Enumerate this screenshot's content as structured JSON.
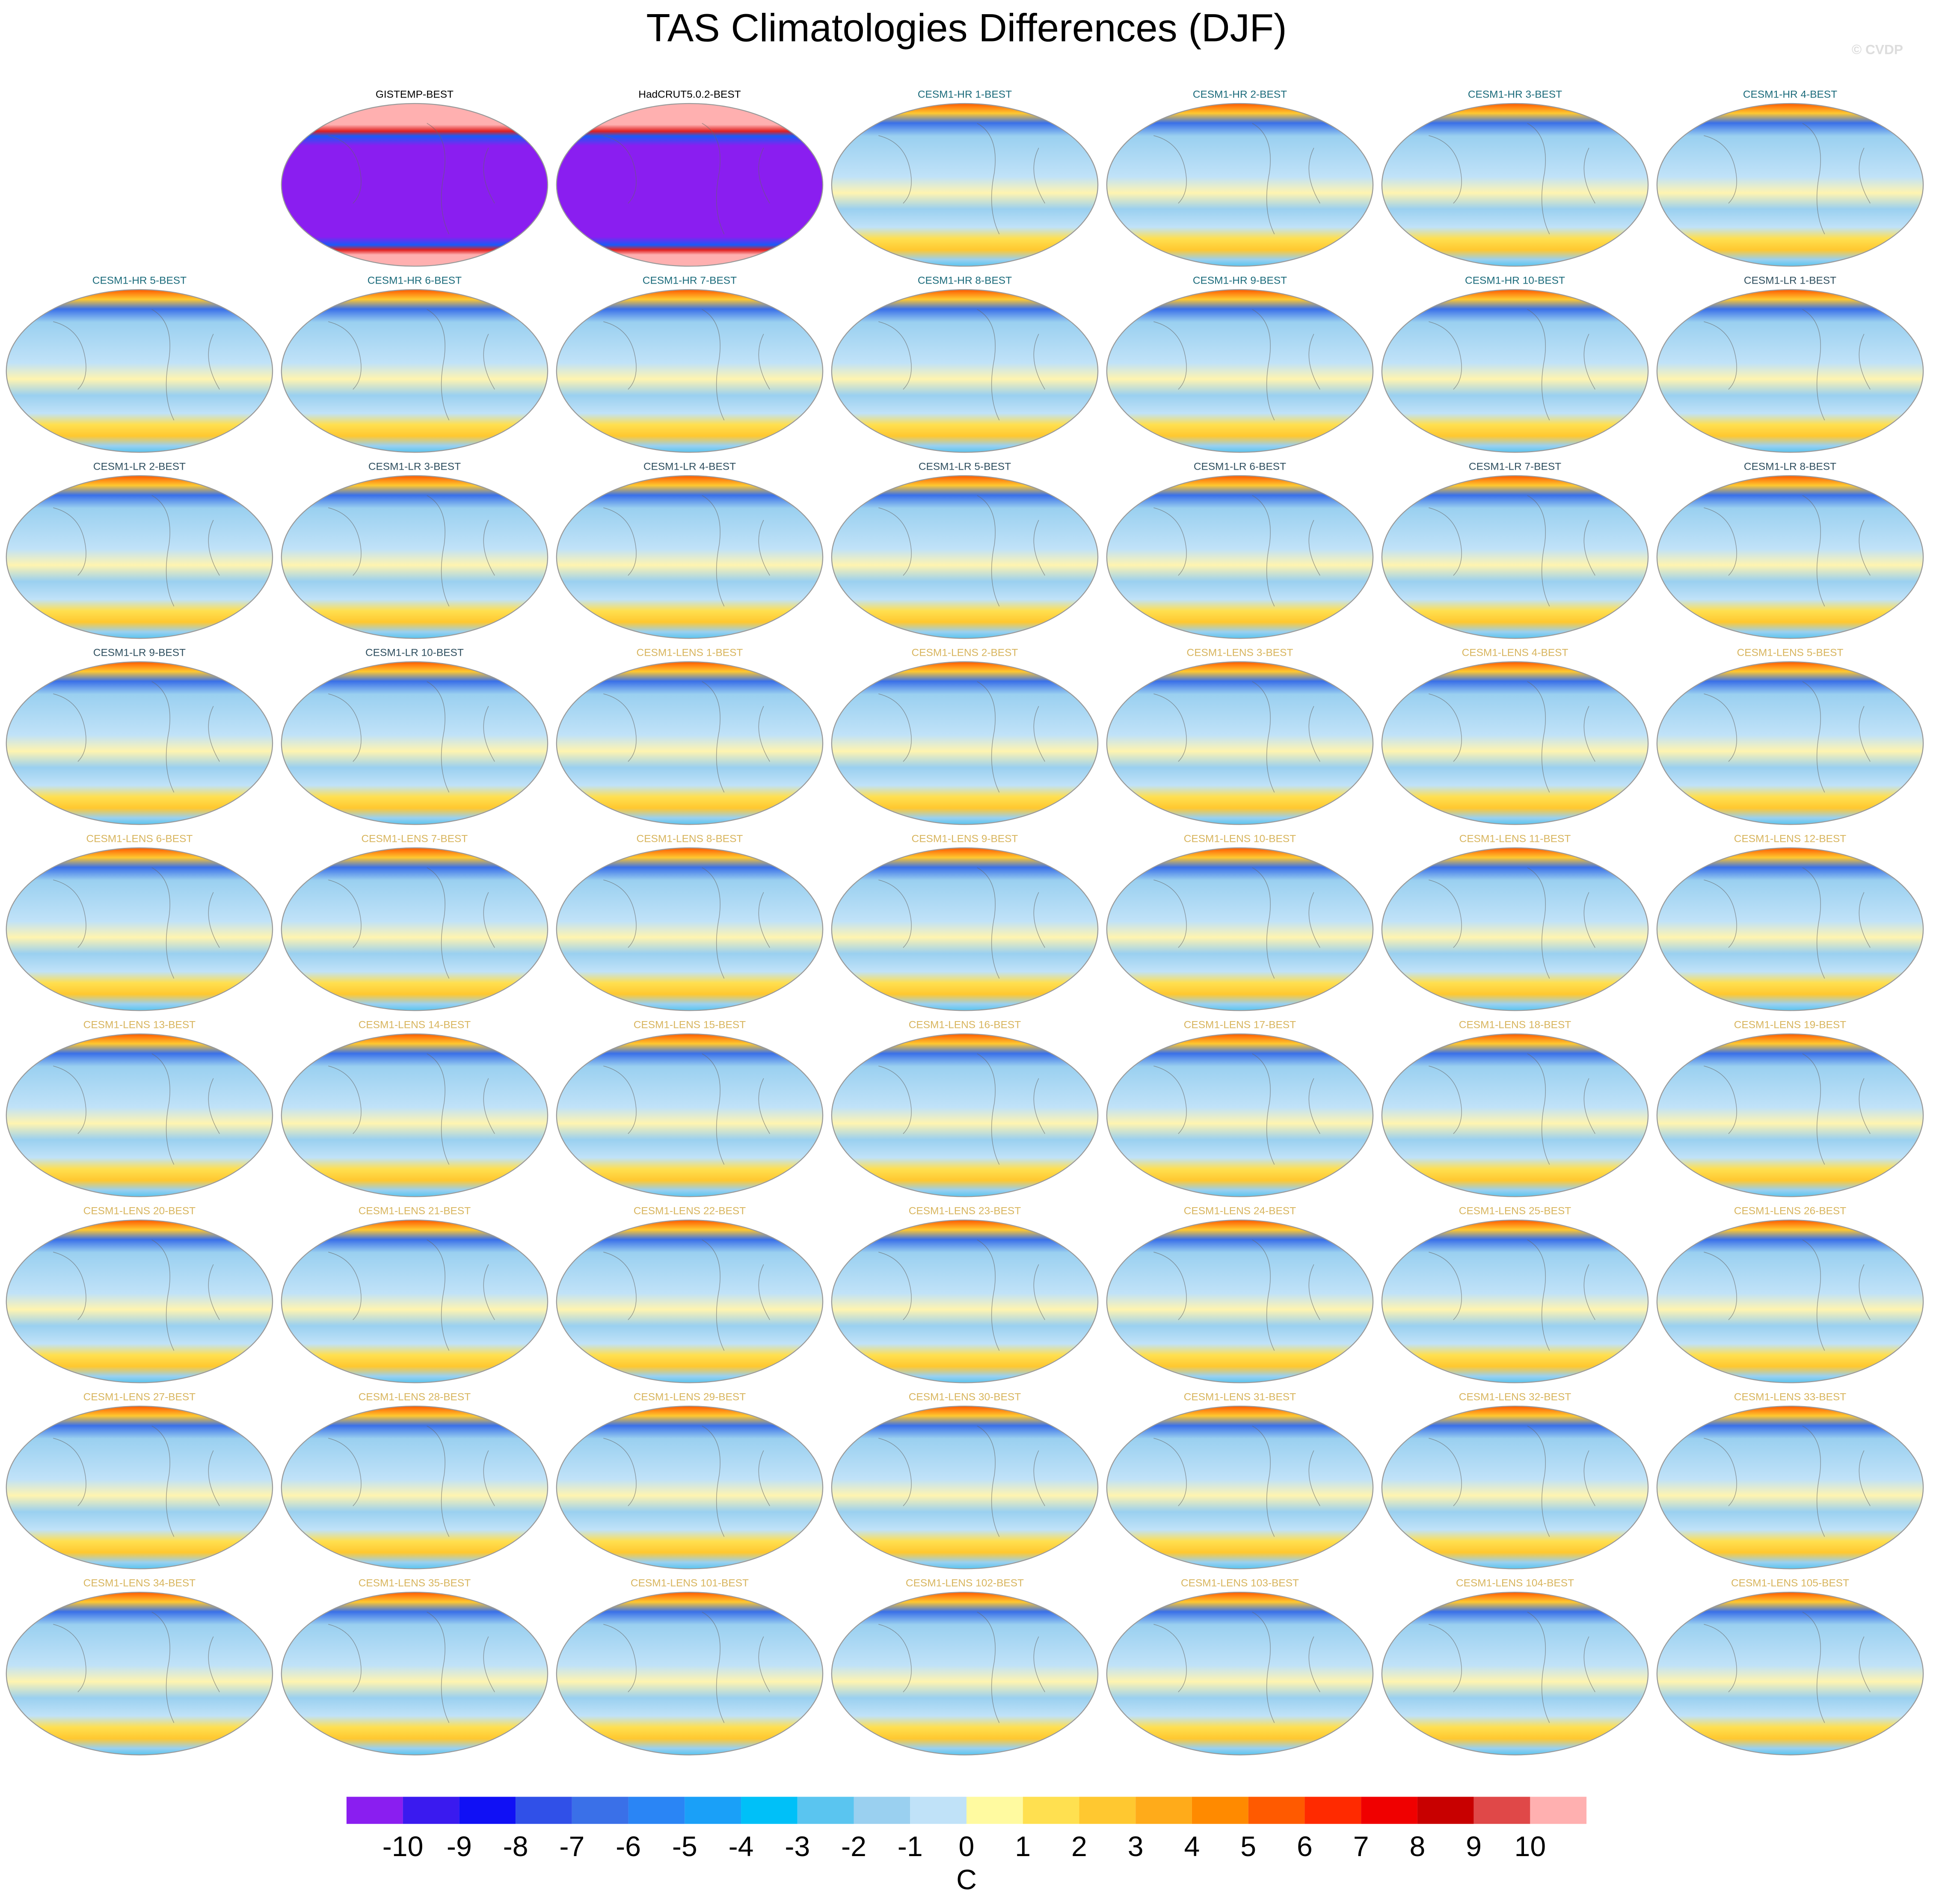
{
  "title": "TAS Climatologies Differences (DJF)",
  "watermark": "© CVDP",
  "panels": [
    {
      "title": "GISTEMP-BEST",
      "color": "#000000"
    },
    {
      "title": "HadCRUT5.0.2-BEST",
      "color": "#000000"
    },
    {
      "title": "CESM1-HR 1-BEST",
      "color": "#1b6b7b"
    },
    {
      "title": "CESM1-HR 2-BEST",
      "color": "#1b6b7b"
    },
    {
      "title": "CESM1-HR 3-BEST",
      "color": "#1b6b7b"
    },
    {
      "title": "CESM1-HR 4-BEST",
      "color": "#1b6b7b"
    },
    {
      "title": "CESM1-HR 5-BEST",
      "color": "#1b6b7b"
    },
    {
      "title": "CESM1-HR 6-BEST",
      "color": "#1b6b7b"
    },
    {
      "title": "CESM1-HR 7-BEST",
      "color": "#1b6b7b"
    },
    {
      "title": "CESM1-HR 8-BEST",
      "color": "#1b6b7b"
    },
    {
      "title": "CESM1-HR 9-BEST",
      "color": "#1b6b7b"
    },
    {
      "title": "CESM1-HR 10-BEST",
      "color": "#1b6b7b"
    },
    {
      "title": "CESM1-LR 1-BEST",
      "color": "#2f4f5f"
    },
    {
      "title": "CESM1-LR 2-BEST",
      "color": "#2f4f5f"
    },
    {
      "title": "CESM1-LR 3-BEST",
      "color": "#2f4f5f"
    },
    {
      "title": "CESM1-LR 4-BEST",
      "color": "#2f4f5f"
    },
    {
      "title": "CESM1-LR 5-BEST",
      "color": "#2f4f5f"
    },
    {
      "title": "CESM1-LR 6-BEST",
      "color": "#2f4f5f"
    },
    {
      "title": "CESM1-LR 7-BEST",
      "color": "#2f4f5f"
    },
    {
      "title": "CESM1-LR 8-BEST",
      "color": "#2f4f5f"
    },
    {
      "title": "CESM1-LR 9-BEST",
      "color": "#2f4f5f"
    },
    {
      "title": "CESM1-LR 10-BEST",
      "color": "#2f4f5f"
    },
    {
      "title": "CESM1-LENS 1-BEST",
      "color": "#d8b55e"
    },
    {
      "title": "CESM1-LENS 2-BEST",
      "color": "#d8b55e"
    },
    {
      "title": "CESM1-LENS 3-BEST",
      "color": "#d8b55e"
    },
    {
      "title": "CESM1-LENS 4-BEST",
      "color": "#d8b55e"
    },
    {
      "title": "CESM1-LENS 5-BEST",
      "color": "#d8b55e"
    },
    {
      "title": "CESM1-LENS 6-BEST",
      "color": "#d8b55e"
    },
    {
      "title": "CESM1-LENS 7-BEST",
      "color": "#d8b55e"
    },
    {
      "title": "CESM1-LENS 8-BEST",
      "color": "#d8b55e"
    },
    {
      "title": "CESM1-LENS 9-BEST",
      "color": "#d8b55e"
    },
    {
      "title": "CESM1-LENS 10-BEST",
      "color": "#d8b55e"
    },
    {
      "title": "CESM1-LENS 11-BEST",
      "color": "#d8b55e"
    },
    {
      "title": "CESM1-LENS 12-BEST",
      "color": "#d8b55e"
    },
    {
      "title": "CESM1-LENS 13-BEST",
      "color": "#d8b55e"
    },
    {
      "title": "CESM1-LENS 14-BEST",
      "color": "#d8b55e"
    },
    {
      "title": "CESM1-LENS 15-BEST",
      "color": "#d8b55e"
    },
    {
      "title": "CESM1-LENS 16-BEST",
      "color": "#d8b55e"
    },
    {
      "title": "CESM1-LENS 17-BEST",
      "color": "#d8b55e"
    },
    {
      "title": "CESM1-LENS 18-BEST",
      "color": "#d8b55e"
    },
    {
      "title": "CESM1-LENS 19-BEST",
      "color": "#d8b55e"
    },
    {
      "title": "CESM1-LENS 20-BEST",
      "color": "#d8b55e"
    },
    {
      "title": "CESM1-LENS 21-BEST",
      "color": "#d8b55e"
    },
    {
      "title": "CESM1-LENS 22-BEST",
      "color": "#d8b55e"
    },
    {
      "title": "CESM1-LENS 23-BEST",
      "color": "#d8b55e"
    },
    {
      "title": "CESM1-LENS 24-BEST",
      "color": "#d8b55e"
    },
    {
      "title": "CESM1-LENS 25-BEST",
      "color": "#d8b55e"
    },
    {
      "title": "CESM1-LENS 26-BEST",
      "color": "#d8b55e"
    },
    {
      "title": "CESM1-LENS 27-BEST",
      "color": "#d8b55e"
    },
    {
      "title": "CESM1-LENS 28-BEST",
      "color": "#d8b55e"
    },
    {
      "title": "CESM1-LENS 29-BEST",
      "color": "#d8b55e"
    },
    {
      "title": "CESM1-LENS 30-BEST",
      "color": "#d8b55e"
    },
    {
      "title": "CESM1-LENS 31-BEST",
      "color": "#d8b55e"
    },
    {
      "title": "CESM1-LENS 32-BEST",
      "color": "#d8b55e"
    },
    {
      "title": "CESM1-LENS 33-BEST",
      "color": "#d8b55e"
    },
    {
      "title": "CESM1-LENS 34-BEST",
      "color": "#d8b55e"
    },
    {
      "title": "CESM1-LENS 35-BEST",
      "color": "#d8b55e"
    },
    {
      "title": "CESM1-LENS 101-BEST",
      "color": "#d8b55e"
    },
    {
      "title": "CESM1-LENS 102-BEST",
      "color": "#d8b55e"
    },
    {
      "title": "CESM1-LENS 103-BEST",
      "color": "#d8b55e"
    },
    {
      "title": "CESM1-LENS 104-BEST",
      "color": "#d8b55e"
    },
    {
      "title": "CESM1-LENS 105-BEST",
      "color": "#d8b55e"
    }
  ],
  "colorbar": {
    "levels": [
      -10,
      -9,
      -8,
      -7,
      -6,
      -5,
      -4,
      -3,
      -2,
      -1,
      0,
      1,
      2,
      3,
      4,
      5,
      6,
      7,
      8,
      9,
      10
    ],
    "colors": [
      "#8a1ef0",
      "#3a1aef",
      "#1010f5",
      "#3050e8",
      "#3a70e8",
      "#2a85f5",
      "#1aa0f8",
      "#00c0f8",
      "#5ac5f0",
      "#9ad0f0",
      "#c0e2f8",
      "#fffaa0",
      "#ffe050",
      "#ffc830",
      "#ffab1a",
      "#ff8a00",
      "#ff5a00",
      "#ff2a00",
      "#f00000",
      "#c80000",
      "#e04848",
      "#ffb0b0"
    ],
    "label": "C"
  }
}
